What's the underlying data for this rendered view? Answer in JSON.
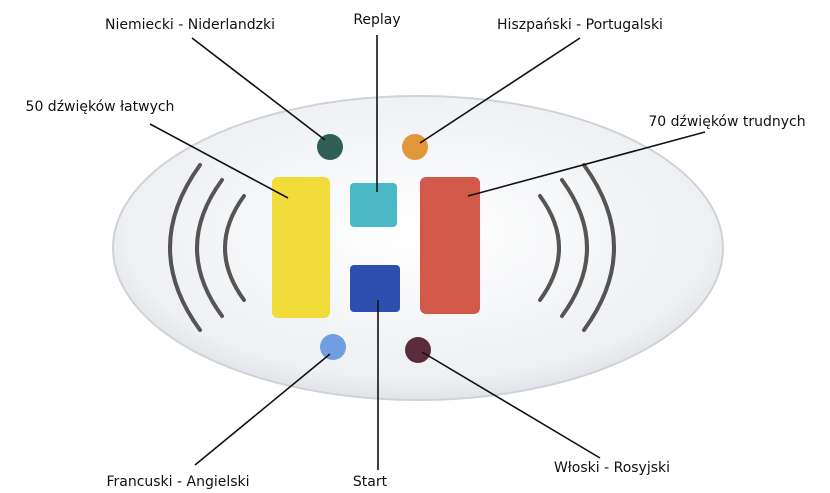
{
  "nodes": [
    {
      "label": "Niemiecki - Niderlandzki"
    },
    {
      "label": "Replay"
    },
    {
      "label": "Hiszpański - Portugalski"
    },
    {
      "label": "50 dźwięków łatwych"
    },
    {
      "label": "70 dźwięków trudnych"
    },
    {
      "label": "Francuski - Angielski"
    },
    {
      "label": "Start"
    },
    {
      "label": "Włoski - Rosyjski"
    }
  ]
}
